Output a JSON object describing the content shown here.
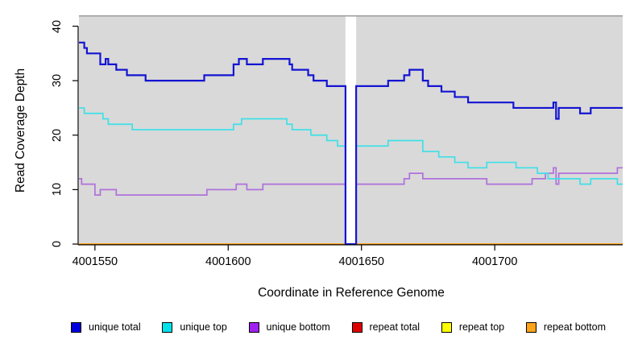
{
  "figure": {
    "y_axis_label": "Read Coverage Depth",
    "x_axis_label": "Coordinate in Reference Genome",
    "colors": {
      "background": "#FFFFFF",
      "panel_bg": "#D9D9D9",
      "panel_border": "#9C9C9C",
      "axis": "#000000",
      "text": "#000000"
    }
  },
  "chart_data": {
    "type": "line",
    "subtype": "step",
    "xlabel": "Coordinate in Reference Genome",
    "ylabel": "Read Coverage Depth",
    "xlim": [
      4001544,
      4001748
    ],
    "ylim": [
      0,
      42
    ],
    "x_end": 4001748,
    "x_tick_values": [
      4001550,
      4001600,
      4001650,
      4001700
    ],
    "x_tick_labels": [
      "4001550",
      "4001600",
      "4001650",
      "4001700"
    ],
    "y_tick_values": [
      0,
      10,
      20,
      30,
      40
    ],
    "y_tick_labels": [
      "0",
      "10",
      "20",
      "30",
      "40"
    ],
    "grid": false,
    "legend_position": "bottom",
    "gap_region": {
      "x_start": 4001644,
      "x_end": 4001648,
      "note": "white band; unique coverage drops to 0"
    },
    "series": [
      {
        "name": "unique total",
        "color": "#1414D2",
        "legend_color": "#0000DB",
        "steps": [
          [
            4001544,
            37
          ],
          [
            4001546,
            36
          ],
          [
            4001547,
            35
          ],
          [
            4001552,
            33
          ],
          [
            4001554,
            34
          ],
          [
            4001555,
            33
          ],
          [
            4001558,
            32
          ],
          [
            4001562,
            31
          ],
          [
            4001569,
            30
          ],
          [
            4001591,
            31
          ],
          [
            4001602,
            33
          ],
          [
            4001604,
            34
          ],
          [
            4001607,
            33
          ],
          [
            4001613,
            34
          ],
          [
            4001623,
            33
          ],
          [
            4001624,
            32
          ],
          [
            4001630,
            31
          ],
          [
            4001632,
            30
          ],
          [
            4001637,
            29
          ],
          [
            4001644,
            0
          ],
          [
            4001648,
            29
          ],
          [
            4001660,
            30
          ],
          [
            4001666,
            31
          ],
          [
            4001668,
            32
          ],
          [
            4001673,
            30
          ],
          [
            4001675,
            29
          ],
          [
            4001680,
            28
          ],
          [
            4001685,
            27
          ],
          [
            4001690,
            26
          ],
          [
            4001707,
            25
          ],
          [
            4001722,
            26
          ],
          [
            4001723,
            23
          ],
          [
            4001724,
            25
          ],
          [
            4001732,
            24
          ],
          [
            4001736,
            25
          ]
        ]
      },
      {
        "name": "unique top",
        "color": "#3FE0E8",
        "legend_color": "#00E1EC",
        "steps": [
          [
            4001544,
            25
          ],
          [
            4001546,
            24
          ],
          [
            4001553,
            23
          ],
          [
            4001555,
            22
          ],
          [
            4001564,
            21
          ],
          [
            4001602,
            22
          ],
          [
            4001605,
            23
          ],
          [
            4001622,
            22
          ],
          [
            4001624,
            21
          ],
          [
            4001631,
            20
          ],
          [
            4001637,
            19
          ],
          [
            4001641,
            18
          ],
          [
            4001644,
            0
          ],
          [
            4001648,
            18
          ],
          [
            4001660,
            19
          ],
          [
            4001673,
            17
          ],
          [
            4001679,
            16
          ],
          [
            4001685,
            15
          ],
          [
            4001690,
            14
          ],
          [
            4001697,
            15
          ],
          [
            4001708,
            14
          ],
          [
            4001716,
            13
          ],
          [
            4001720,
            12
          ],
          [
            4001732,
            11
          ],
          [
            4001736,
            12
          ],
          [
            4001746,
            11
          ]
        ]
      },
      {
        "name": "unique bottom",
        "color": "#AF71DB",
        "legend_color": "#A020F0",
        "steps": [
          [
            4001544,
            12
          ],
          [
            4001545,
            11
          ],
          [
            4001550,
            9
          ],
          [
            4001552,
            10
          ],
          [
            4001558,
            9
          ],
          [
            4001592,
            10
          ],
          [
            4001603,
            11
          ],
          [
            4001607,
            10
          ],
          [
            4001613,
            11
          ],
          [
            4001644,
            0
          ],
          [
            4001648,
            11
          ],
          [
            4001666,
            12
          ],
          [
            4001668,
            13
          ],
          [
            4001673,
            12
          ],
          [
            4001697,
            11
          ],
          [
            4001714,
            12
          ],
          [
            4001719,
            13
          ],
          [
            4001722,
            14
          ],
          [
            4001723,
            11
          ],
          [
            4001724,
            13
          ],
          [
            4001746,
            14
          ]
        ]
      },
      {
        "name": "repeat total",
        "color": "#DE0000",
        "legend_color": "#DE0000",
        "steps": [
          [
            4001544,
            0
          ]
        ]
      },
      {
        "name": "repeat top",
        "color": "#FFFF00",
        "legend_color": "#FFFF00",
        "steps": [
          [
            4001544,
            0
          ]
        ]
      },
      {
        "name": "repeat bottom",
        "color": "#FFA319",
        "legend_color": "#FFA319",
        "steps": [
          [
            4001544,
            0
          ]
        ]
      }
    ]
  }
}
